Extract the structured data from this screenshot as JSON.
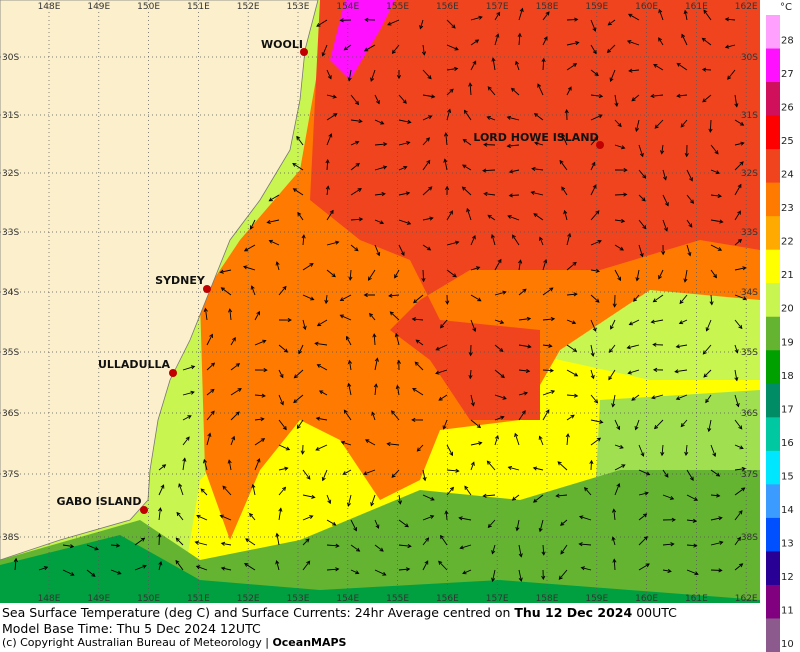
{
  "map": {
    "lon_labels": [
      "148E",
      "149E",
      "150E",
      "151E",
      "152E",
      "153E",
      "154E",
      "155E",
      "156E",
      "157E",
      "158E",
      "159E",
      "160E",
      "161E",
      "162E"
    ],
    "lat_labels": [
      "30S",
      "31S",
      "32S",
      "33S",
      "34S",
      "35S",
      "36S",
      "37S",
      "38S"
    ],
    "places": [
      "WOOLI",
      "LORD HOWE ISLAND",
      "SYDNEY",
      "ULLADULLA",
      "GABO ISLAND"
    ]
  },
  "colorbar": {
    "unit": "°C",
    "levels": [
      {
        "label": "28",
        "color": "#ffa0ff"
      },
      {
        "label": "27",
        "color": "#ff10ff"
      },
      {
        "label": "26",
        "color": "#d0105a"
      },
      {
        "label": "25",
        "color": "#ff0000"
      },
      {
        "label": "24",
        "color": "#f0441e"
      },
      {
        "label": "23",
        "color": "#ff7a00"
      },
      {
        "label": "22",
        "color": "#ffaa00"
      },
      {
        "label": "21",
        "color": "#ffff00"
      },
      {
        "label": "20",
        "color": "#c8f550"
      },
      {
        "label": "19",
        "color": "#64b432"
      },
      {
        "label": "18",
        "color": "#00a000"
      },
      {
        "label": "17",
        "color": "#008c64"
      },
      {
        "label": "16",
        "color": "#00c8a0"
      },
      {
        "label": "15",
        "color": "#00e6ff"
      },
      {
        "label": "14",
        "color": "#3c9bff"
      },
      {
        "label": "13",
        "color": "#0050ff"
      },
      {
        "label": "12",
        "color": "#280096"
      },
      {
        "label": "11",
        "color": "#800080"
      },
      {
        "label": "10",
        "color": "#8c5a8c"
      }
    ]
  },
  "caption": {
    "line1": {
      "text": "Sea Surface Temperature (deg C) and Surface Currents: 24hr Average centred on ",
      "date": "Thu 12 Dec 2024",
      "time": " 00UTC"
    },
    "line2": "Model Base Time: Thu 5 Dec 2024 12UTC",
    "line3": {
      "text": "(c) Copyright Australian Bureau of Meteorology | ",
      "brand": "OceanMAPS"
    }
  }
}
